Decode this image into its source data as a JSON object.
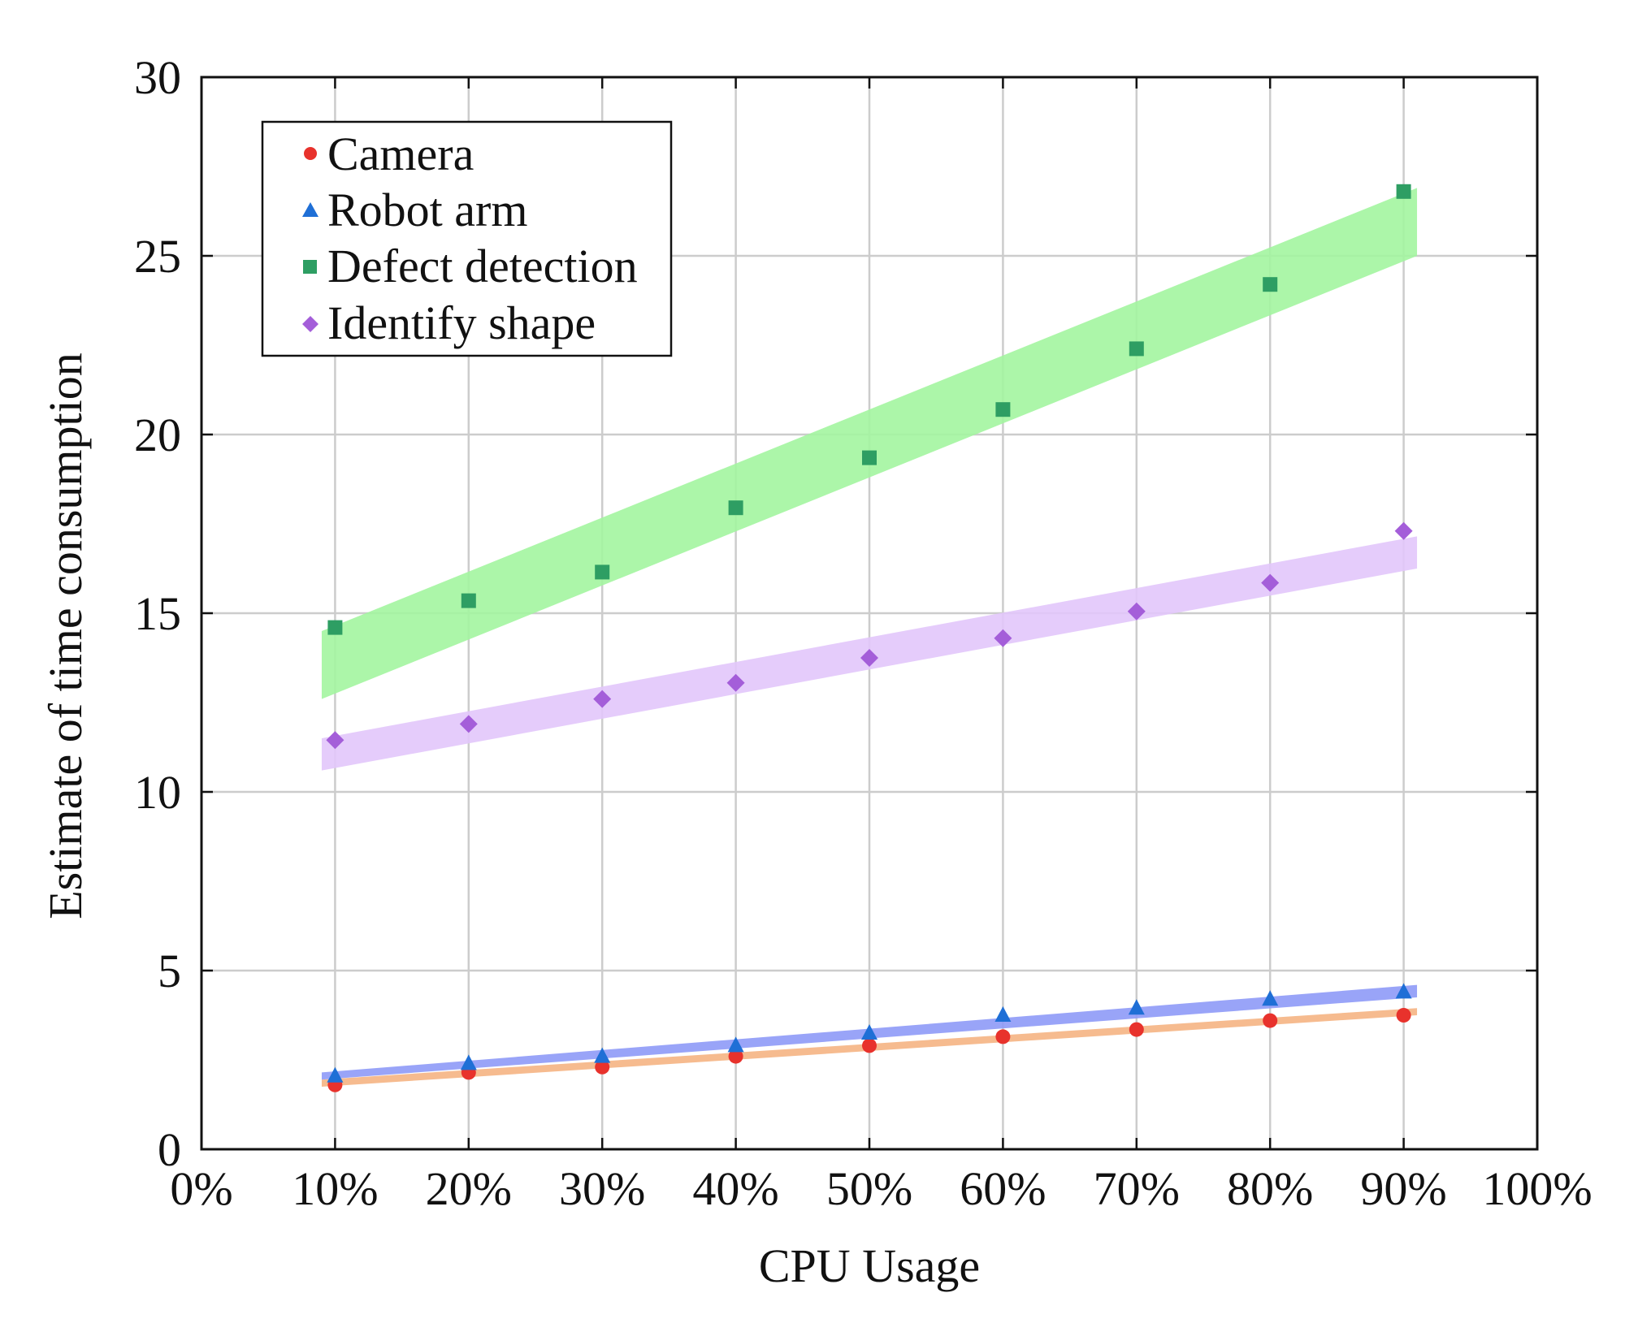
{
  "chart_data": {
    "type": "scatter",
    "title": "",
    "xlabel": "CPU Usage",
    "ylabel": "Estimate of time consumption",
    "x_tick_labels": [
      "0%",
      "10%",
      "20%",
      "30%",
      "40%",
      "50%",
      "60%",
      "70%",
      "80%",
      "90%",
      "100%"
    ],
    "y_tick_labels": [
      "0",
      "5",
      "10",
      "15",
      "20",
      "25",
      "30"
    ],
    "xlim": [
      0,
      100
    ],
    "ylim": [
      0,
      30
    ],
    "grid": true,
    "legend_position": "top-left",
    "x": [
      10,
      20,
      30,
      40,
      50,
      60,
      70,
      80,
      90
    ],
    "series": [
      {
        "name": "Camera",
        "marker": "circle",
        "color": "#e8322c",
        "band_color": "#f5b483",
        "values": [
          1.8,
          2.15,
          2.3,
          2.6,
          2.9,
          3.15,
          3.35,
          3.6,
          3.75
        ],
        "band": {
          "x_start": 9,
          "x_end": 91,
          "lower": [
            1.75,
            3.75
          ],
          "upper": [
            1.95,
            3.95
          ]
        }
      },
      {
        "name": "Robot arm",
        "marker": "triangle",
        "color": "#1f6fd6",
        "band_color": "#8e9af7",
        "values": [
          2.05,
          2.4,
          2.6,
          2.9,
          3.25,
          3.75,
          3.95,
          4.2,
          4.4
        ],
        "band": {
          "x_start": 9,
          "x_end": 91,
          "lower": [
            1.95,
            4.25
          ],
          "upper": [
            2.15,
            4.6
          ]
        }
      },
      {
        "name": "Defect detection",
        "marker": "square",
        "color": "#2e9e63",
        "band_color": "#a3f5a0",
        "values": [
          14.6,
          15.35,
          16.15,
          17.95,
          19.35,
          20.7,
          22.4,
          24.2,
          26.8
        ],
        "band": {
          "x_start": 9,
          "x_end": 91,
          "lower": [
            12.6,
            25.0
          ],
          "upper": [
            14.5,
            26.9
          ]
        }
      },
      {
        "name": "Identify shape",
        "marker": "diamond",
        "color": "#a45ed9",
        "band_color": "#e2c6fb",
        "values": [
          11.45,
          11.9,
          12.6,
          13.05,
          13.75,
          14.3,
          15.05,
          15.85,
          17.3
        ],
        "band": {
          "x_start": 9,
          "x_end": 91,
          "lower": [
            10.6,
            16.25
          ],
          "upper": [
            11.5,
            17.15
          ]
        }
      }
    ]
  }
}
